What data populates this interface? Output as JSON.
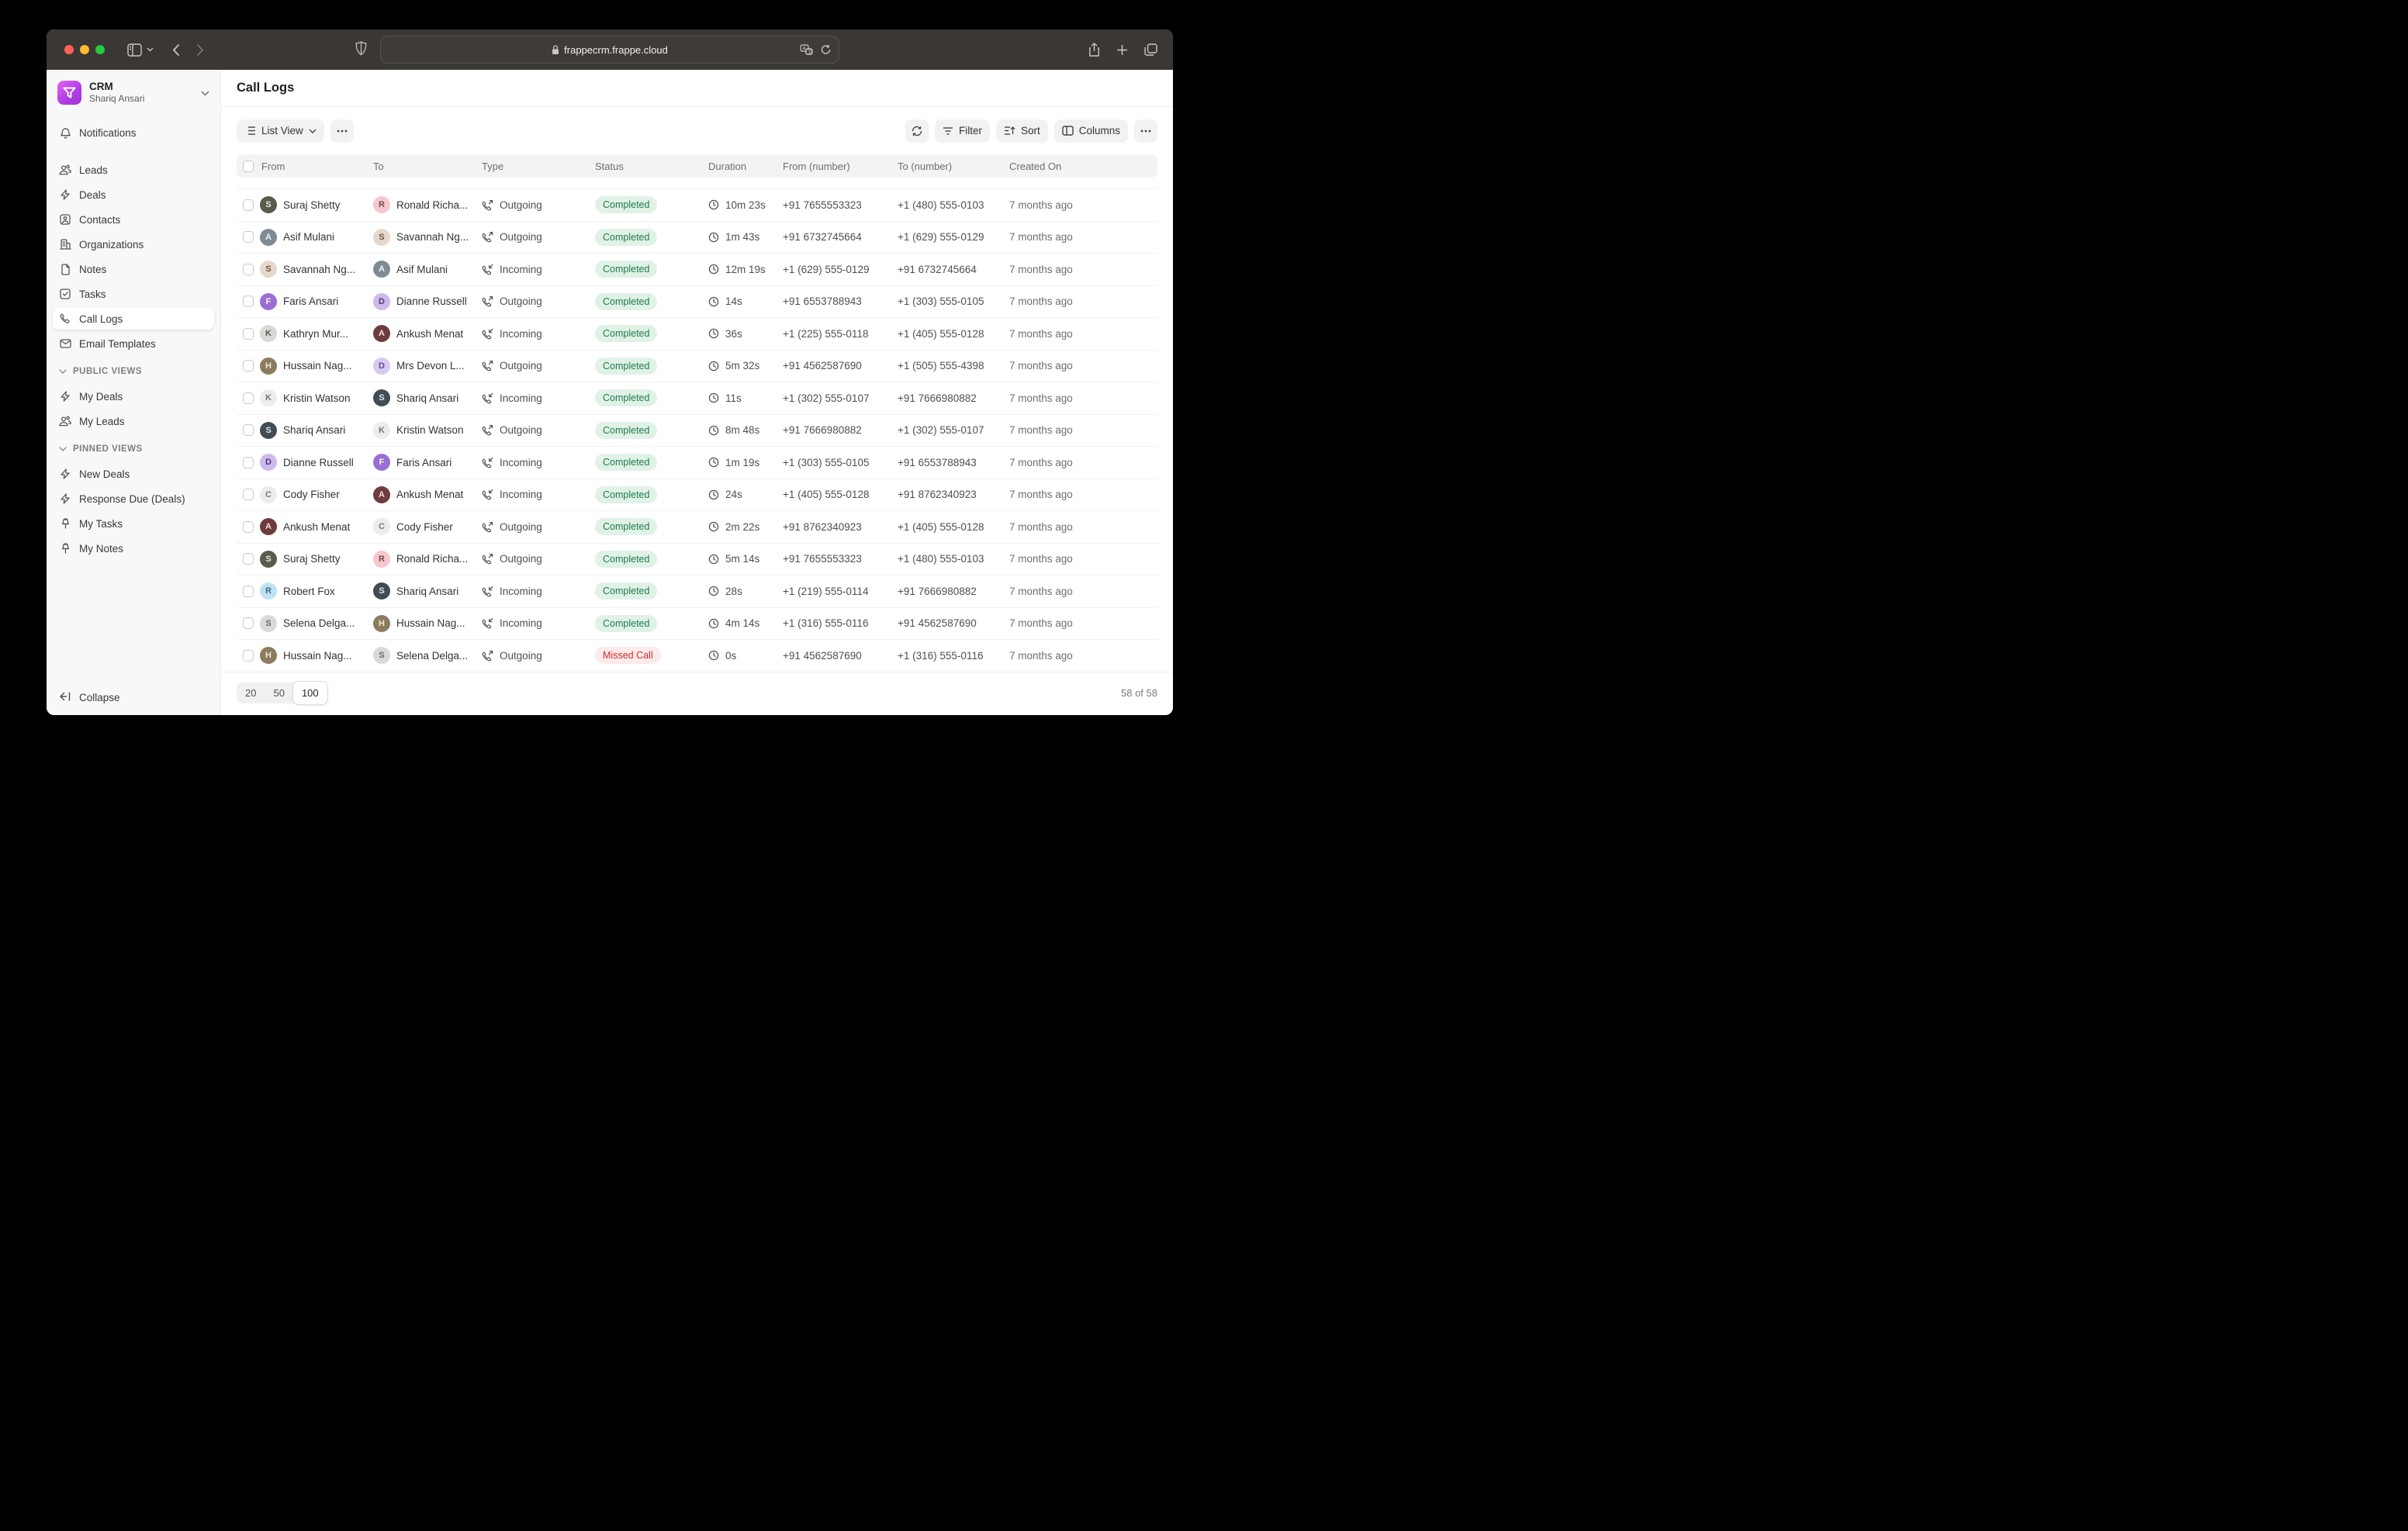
{
  "browser": {
    "url": "frappecrm.frappe.cloud",
    "traffic_lights": {
      "close": "#ff5f57",
      "minimize": "#febc2e",
      "zoom": "#28c840"
    }
  },
  "sidebar": {
    "workspace": {
      "app": "CRM",
      "user": "Shariq Ansari"
    },
    "items": [
      {
        "label": "Notifications",
        "icon": "bell-icon"
      },
      {
        "label": "Leads",
        "icon": "users-icon",
        "group_start": true
      },
      {
        "label": "Deals",
        "icon": "zap-icon"
      },
      {
        "label": "Contacts",
        "icon": "contact-icon"
      },
      {
        "label": "Organizations",
        "icon": "building-icon"
      },
      {
        "label": "Notes",
        "icon": "file-icon"
      },
      {
        "label": "Tasks",
        "icon": "task-icon"
      },
      {
        "label": "Call Logs",
        "icon": "phone-icon",
        "active": true
      },
      {
        "label": "Email Templates",
        "icon": "mail-icon"
      }
    ],
    "sections": [
      {
        "label": "PUBLIC VIEWS",
        "items": [
          {
            "label": "My Deals",
            "icon": "zap-icon"
          },
          {
            "label": "My Leads",
            "icon": "users-icon"
          }
        ]
      },
      {
        "label": "PINNED VIEWS",
        "items": [
          {
            "label": "New Deals",
            "icon": "zap-icon"
          },
          {
            "label": "Response Due (Deals)",
            "icon": "zap-icon"
          },
          {
            "label": "My Tasks",
            "icon": "pin-icon"
          },
          {
            "label": "My Notes",
            "icon": "pin-icon"
          }
        ]
      }
    ],
    "collapse_label": "Collapse"
  },
  "header": {
    "title": "Call Logs"
  },
  "toolbar": {
    "view_label": "List View",
    "filter_label": "Filter",
    "sort_label": "Sort",
    "columns_label": "Columns"
  },
  "status_colors": {
    "Completed": {
      "bg": "#e0f2e6",
      "fg": "#1e7b4d"
    },
    "Missed Call": {
      "bg": "#fdeaea",
      "fg": "#cf2c2c"
    }
  },
  "people": {
    "suraj": {
      "initial": "S",
      "bg": "#585c49",
      "fg": "#e8e8e0"
    },
    "ronald": {
      "initial": "R",
      "bg": "#f6c7ce",
      "fg": "#7a4a42"
    },
    "asif": {
      "initial": "A",
      "bg": "#7e8b95",
      "fg": "#eef2f5"
    },
    "savannah": {
      "initial": "S",
      "bg": "#e5d8cb",
      "fg": "#6f5844"
    },
    "faris": {
      "initial": "F",
      "bg": "#9a6fd4",
      "fg": "#fff3e0"
    },
    "kathryn": {
      "initial": "K",
      "bg": "#dad8d6",
      "fg": "#5e5a56"
    },
    "ankush": {
      "initial": "A",
      "bg": "#6e3c3c",
      "fg": "#f3dede"
    },
    "hussain": {
      "initial": "H",
      "bg": "#8c7b5d",
      "fg": "#f1ead9"
    },
    "devon": {
      "initial": "D",
      "bg": "#d8c9f1",
      "fg": "#5f4a8a"
    },
    "kristin": {
      "initial": "K",
      "bg": "#ececec",
      "fg": "#767676"
    },
    "shariq": {
      "initial": "S",
      "bg": "#414c54",
      "fg": "#dbe4ea"
    },
    "dianne": {
      "initial": "D",
      "bg": "#cdb9ec",
      "fg": "#4f3a78"
    },
    "cody": {
      "initial": "C",
      "bg": "#ececec",
      "fg": "#767676"
    },
    "robert": {
      "initial": "R",
      "bg": "#bfe1f3",
      "fg": "#3e6a84"
    },
    "selena": {
      "initial": "S",
      "bg": "#d9d9d9",
      "fg": "#6a6a6a"
    }
  },
  "table": {
    "columns": [
      "From",
      "To",
      "Type",
      "Status",
      "Duration",
      "From (number)",
      "To (number)",
      "Created On"
    ],
    "rows": [
      {
        "from": "Suraj Shetty",
        "from_p": "suraj",
        "to": "Ronald Richa...",
        "to_p": "ronald",
        "type": "Outgoing",
        "status": "Completed",
        "duration": "10m 23s",
        "from_number": "+91 7655553323",
        "to_number": "+1 (480) 555-0103",
        "created": "7 months ago"
      },
      {
        "from": "Asif Mulani",
        "from_p": "asif",
        "to": "Savannah Ng...",
        "to_p": "savannah",
        "type": "Outgoing",
        "status": "Completed",
        "duration": "1m 43s",
        "from_number": "+91 6732745664",
        "to_number": "+1 (629) 555-0129",
        "created": "7 months ago"
      },
      {
        "from": "Savannah Ng...",
        "from_p": "savannah",
        "to": "Asif Mulani",
        "to_p": "asif",
        "type": "Incoming",
        "status": "Completed",
        "duration": "12m 19s",
        "from_number": "+1 (629) 555-0129",
        "to_number": "+91 6732745664",
        "created": "7 months ago"
      },
      {
        "from": "Faris Ansari",
        "from_p": "faris",
        "to": "Dianne Russell",
        "to_p": "dianne",
        "type": "Outgoing",
        "status": "Completed",
        "duration": "14s",
        "from_number": "+91 6553788943",
        "to_number": "+1 (303) 555-0105",
        "created": "7 months ago"
      },
      {
        "from": "Kathryn Mur...",
        "from_p": "kathryn",
        "to": "Ankush Menat",
        "to_p": "ankush",
        "type": "Incoming",
        "status": "Completed",
        "duration": "36s",
        "from_number": "+1 (225) 555-0118",
        "to_number": "+1 (405) 555-0128",
        "created": "7 months ago"
      },
      {
        "from": "Hussain Nag...",
        "from_p": "hussain",
        "to": "Mrs Devon L...",
        "to_p": "devon",
        "type": "Outgoing",
        "status": "Completed",
        "duration": "5m 32s",
        "from_number": "+91 4562587690",
        "to_number": "+1 (505) 555-4398",
        "created": "7 months ago"
      },
      {
        "from": "Kristin Watson",
        "from_p": "kristin",
        "to": "Shariq Ansari",
        "to_p": "shariq",
        "type": "Incoming",
        "status": "Completed",
        "duration": "11s",
        "from_number": "+1 (302) 555-0107",
        "to_number": "+91 7666980882",
        "created": "7 months ago"
      },
      {
        "from": "Shariq Ansari",
        "from_p": "shariq",
        "to": "Kristin Watson",
        "to_p": "kristin",
        "type": "Outgoing",
        "status": "Completed",
        "duration": "8m 48s",
        "from_number": "+91 7666980882",
        "to_number": "+1 (302) 555-0107",
        "created": "7 months ago"
      },
      {
        "from": "Dianne Russell",
        "from_p": "dianne",
        "to": "Faris Ansari",
        "to_p": "faris",
        "type": "Incoming",
        "status": "Completed",
        "duration": "1m 19s",
        "from_number": "+1 (303) 555-0105",
        "to_number": "+91 6553788943",
        "created": "7 months ago"
      },
      {
        "from": "Cody Fisher",
        "from_p": "cody",
        "to": "Ankush Menat",
        "to_p": "ankush",
        "type": "Incoming",
        "status": "Completed",
        "duration": "24s",
        "from_number": "+1 (405) 555-0128",
        "to_number": "+91 8762340923",
        "created": "7 months ago"
      },
      {
        "from": "Ankush Menat",
        "from_p": "ankush",
        "to": "Cody Fisher",
        "to_p": "cody",
        "type": "Outgoing",
        "status": "Completed",
        "duration": "2m 22s",
        "from_number": "+91 8762340923",
        "to_number": "+1 (405) 555-0128",
        "created": "7 months ago"
      },
      {
        "from": "Suraj Shetty",
        "from_p": "suraj",
        "to": "Ronald Richa...",
        "to_p": "ronald",
        "type": "Outgoing",
        "status": "Completed",
        "duration": "5m 14s",
        "from_number": "+91 7655553323",
        "to_number": "+1 (480) 555-0103",
        "created": "7 months ago"
      },
      {
        "from": "Robert Fox",
        "from_p": "robert",
        "to": "Shariq Ansari",
        "to_p": "shariq",
        "type": "Incoming",
        "status": "Completed",
        "duration": "28s",
        "from_number": "+1 (219) 555-0114",
        "to_number": "+91 7666980882",
        "created": "7 months ago"
      },
      {
        "from": "Selena Delga...",
        "from_p": "selena",
        "to": "Hussain Nag...",
        "to_p": "hussain",
        "type": "Incoming",
        "status": "Completed",
        "duration": "4m 14s",
        "from_number": "+1 (316) 555-0116",
        "to_number": "+91 4562587690",
        "created": "7 months ago"
      },
      {
        "from": "Hussain Nag...",
        "from_p": "hussain",
        "to": "Selena Delga...",
        "to_p": "selena",
        "type": "Outgoing",
        "status": "Missed Call",
        "duration": "0s",
        "from_number": "+91 4562587690",
        "to_number": "+1 (316) 555-0116",
        "created": "7 months ago"
      }
    ]
  },
  "pagination": {
    "sizes": [
      "20",
      "50",
      "100"
    ],
    "selected": "100",
    "count_text": "58 of 58"
  }
}
